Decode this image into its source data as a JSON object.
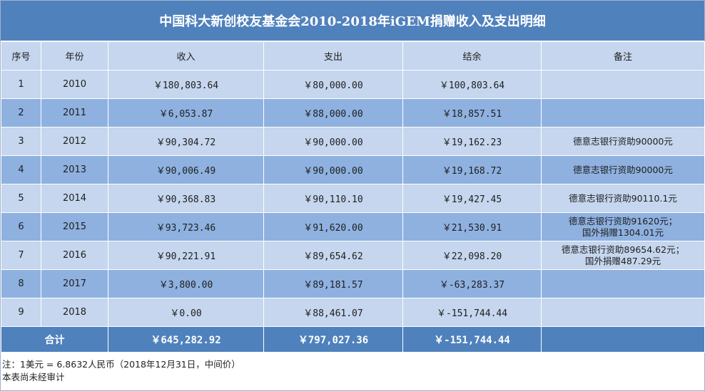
{
  "title": "中国科大新创校友基金会2010-2018年iGEM捐赠收入及支出明细",
  "headers": [
    "序号",
    "年份",
    "收入",
    "支出",
    "结余",
    "备注"
  ],
  "rows": [
    {
      "no": "1",
      "year": "2010",
      "income": "￥180,803.64",
      "expense": "￥80,000.00",
      "balance": "￥100,803.64",
      "note": [
        "",
        ""
      ]
    },
    {
      "no": "2",
      "year": "2011",
      "income": "￥6,053.87",
      "expense": "￥88,000.00",
      "balance": "￥18,857.51",
      "note": [
        "",
        ""
      ]
    },
    {
      "no": "3",
      "year": "2012",
      "income": "￥90,304.72",
      "expense": "￥90,000.00",
      "balance": "￥19,162.23",
      "note": [
        "德意志银行资助90000元",
        ""
      ]
    },
    {
      "no": "4",
      "year": "2013",
      "income": "￥90,006.49",
      "expense": "￥90,000.00",
      "balance": "￥19,168.72",
      "note": [
        "德意志银行资助90000元",
        ""
      ]
    },
    {
      "no": "5",
      "year": "2014",
      "income": "￥90,368.83",
      "expense": "￥90,110.10",
      "balance": "￥19,427.45",
      "note": [
        "德意志银行资助90110.1元",
        ""
      ]
    },
    {
      "no": "6",
      "year": "2015",
      "income": "￥93,723.46",
      "expense": "￥91,620.00",
      "balance": "￥21,530.91",
      "note": [
        "德意志银行资助91620元；",
        "国外捐赠1304.01元"
      ]
    },
    {
      "no": "7",
      "year": "2016",
      "income": "￥90,221.91",
      "expense": "￥89,654.62",
      "balance": "￥22,098.20",
      "note": [
        "德意志银行资助89654.62元；",
        "国外捐赠487.29元"
      ]
    },
    {
      "no": "8",
      "year": "2017",
      "income": "￥3,800.00",
      "expense": "￥89,181.57",
      "balance": "￥-63,283.37",
      "note": [
        "",
        ""
      ]
    },
    {
      "no": "9",
      "year": "2018",
      "income": "￥0.00",
      "expense": "￥88,461.07",
      "balance": "￥-151,744.44",
      "note": [
        "",
        ""
      ]
    }
  ],
  "total": {
    "label": "合计",
    "income": "￥645,282.92",
    "expense": "￥797,027.36",
    "balance": "￥-151,744.44",
    "note": ""
  },
  "footer": {
    "line1": "注：1美元 = 6.8632人民币（2018年12月31日，中间价）",
    "line2": "本表尚未经审计"
  },
  "colors": {
    "header_blue": "#4f81bd",
    "row_light": "#c5d6ee",
    "row_mid": "#8eb1e0"
  }
}
